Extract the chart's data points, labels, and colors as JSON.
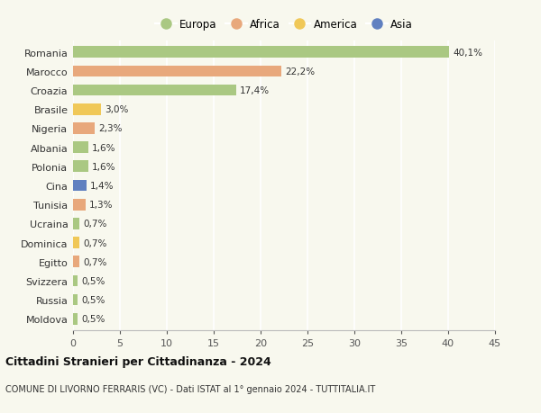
{
  "countries": [
    "Romania",
    "Marocco",
    "Croazia",
    "Brasile",
    "Nigeria",
    "Albania",
    "Polonia",
    "Cina",
    "Tunisia",
    "Ucraina",
    "Dominica",
    "Egitto",
    "Svizzera",
    "Russia",
    "Moldova"
  ],
  "values": [
    40.1,
    22.2,
    17.4,
    3.0,
    2.3,
    1.6,
    1.6,
    1.4,
    1.3,
    0.7,
    0.7,
    0.7,
    0.5,
    0.5,
    0.5
  ],
  "labels": [
    "40,1%",
    "22,2%",
    "17,4%",
    "3,0%",
    "2,3%",
    "1,6%",
    "1,6%",
    "1,4%",
    "1,3%",
    "0,7%",
    "0,7%",
    "0,7%",
    "0,5%",
    "0,5%",
    "0,5%"
  ],
  "continents": [
    "Europa",
    "Africa",
    "Europa",
    "America",
    "Africa",
    "Europa",
    "Europa",
    "Asia",
    "Africa",
    "Europa",
    "America",
    "Africa",
    "Europa",
    "Europa",
    "Europa"
  ],
  "colors": {
    "Europa": "#aac882",
    "Africa": "#e8a87c",
    "America": "#f0c858",
    "Asia": "#6080c0"
  },
  "xlim": [
    0,
    45
  ],
  "xticks": [
    0,
    5,
    10,
    15,
    20,
    25,
    30,
    35,
    40,
    45
  ],
  "title": "Cittadini Stranieri per Cittadinanza - 2024",
  "subtitle": "COMUNE DI LIVORNO FERRARIS (VC) - Dati ISTAT al 1° gennaio 2024 - TUTTITALIA.IT",
  "background_color": "#f8f8ee",
  "grid_color": "#ffffff",
  "bar_height": 0.6,
  "figsize": [
    6.0,
    4.6
  ],
  "dpi": 100,
  "legend_order": [
    "Europa",
    "Africa",
    "America",
    "Asia"
  ]
}
